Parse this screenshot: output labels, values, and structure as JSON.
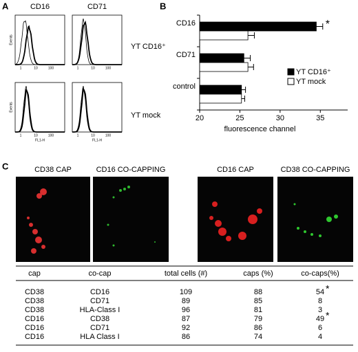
{
  "panel_labels": [
    "A",
    "B",
    "C"
  ],
  "panel_a": {
    "columns": [
      "CD16",
      "CD71"
    ],
    "rows": [
      "YT CD16⁺",
      "YT mock"
    ],
    "y_label": "Events",
    "x_label": "FL1-H",
    "ticks": [
      "1",
      "10",
      "100"
    ]
  },
  "chart_data": {
    "type": "hbar",
    "x_label": "fluorescence channel",
    "categories": [
      "CD16",
      "CD71",
      "control"
    ],
    "series": [
      {
        "name": "YT CD16⁺",
        "color": "#000000",
        "values": [
          34.5,
          25.5,
          25.2
        ],
        "errors": [
          0.8,
          0.8,
          0.5
        ]
      },
      {
        "name": "YT mock",
        "color": "#ffffff",
        "values": [
          26,
          26,
          25.2
        ],
        "errors": [
          0.8,
          0.7,
          0.4
        ]
      }
    ],
    "xlim": [
      20,
      38.4
    ],
    "xticks": [
      20,
      25,
      30,
      35
    ],
    "annotation": "*"
  },
  "panel_c": {
    "image_titles": [
      "CD38 CAP",
      "CD16 CO-CAPPING",
      "CD16 CAP",
      "CD38 CO-CAPPING"
    ]
  },
  "table": {
    "header": [
      "cap",
      "co-cap",
      "total cells (#)",
      "caps (%)",
      "co-caps(%)"
    ],
    "rows": [
      {
        "cells": [
          "CD38",
          "CD16",
          109,
          88,
          54
        ],
        "note": "*"
      },
      {
        "cells": [
          "CD38",
          "CD71",
          89,
          85,
          8
        ]
      },
      {
        "cells": [
          "CD38",
          "HLA-Class I",
          96,
          81,
          3
        ]
      },
      {
        "cells": [
          "CD16",
          "CD38",
          87,
          79,
          49
        ],
        "note": "*"
      },
      {
        "cells": [
          "CD16",
          "CD71",
          92,
          86,
          6
        ]
      },
      {
        "cells": [
          "CD16",
          "HLA Class I",
          86,
          74,
          4
        ]
      }
    ]
  }
}
